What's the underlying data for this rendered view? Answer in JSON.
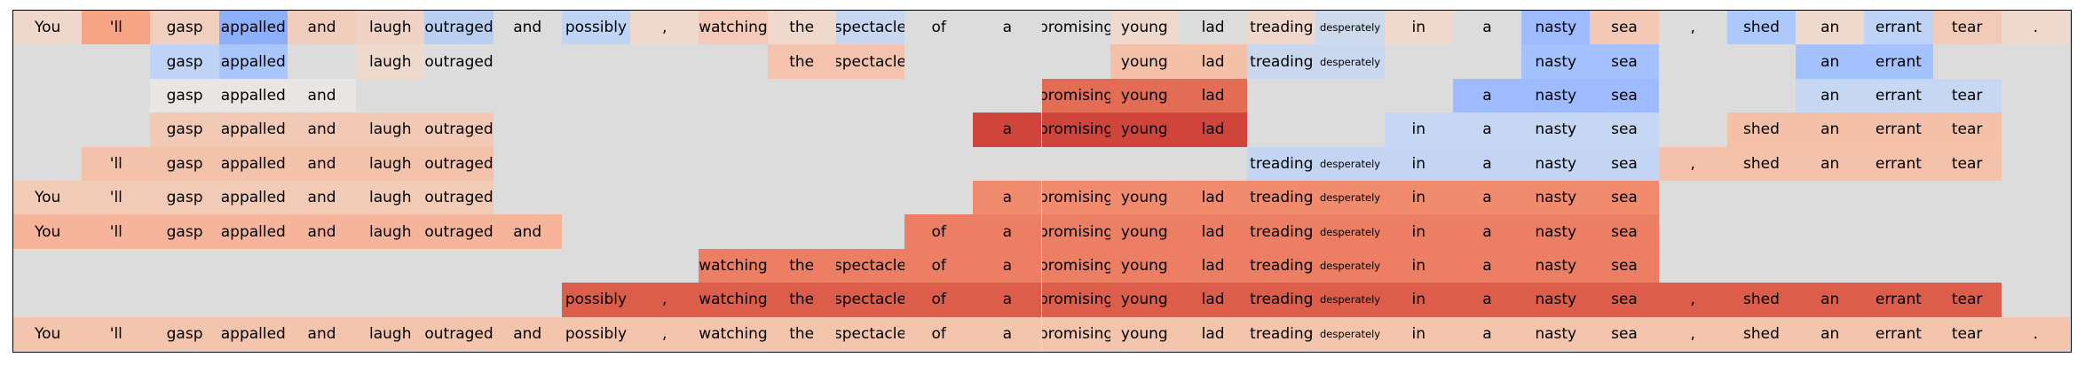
{
  "tokens": [
    "You",
    "'ll",
    "gasp",
    "appalled",
    "and",
    "laugh",
    "outraged",
    "and",
    "possibly",
    ",",
    "watching",
    "the",
    "spectacle",
    "of",
    "a",
    "promising",
    "young",
    "lad",
    "treading",
    "desperately",
    "in",
    "a",
    "nasty",
    "sea",
    ",",
    "shed",
    "an",
    "errant",
    "tear",
    "."
  ],
  "palette": {
    "background": "#dcdcdc",
    "border": "#000000"
  },
  "rows": [
    {
      "cells": [
        [
          0,
          "#efd7cb"
        ],
        [
          1,
          "#f5a486"
        ],
        [
          2,
          "#f1cfbf"
        ],
        [
          3,
          "#8daef8"
        ],
        [
          4,
          "#f1cdbc"
        ],
        [
          5,
          "#f0d3c6"
        ],
        [
          6,
          "#b9cff2"
        ],
        [
          7,
          null
        ],
        [
          8,
          "#c0d4f5"
        ],
        [
          9,
          "#efd8cc"
        ],
        [
          10,
          "#f2cab7"
        ],
        [
          11,
          "#efd8cc"
        ],
        [
          12,
          "#c7d7f0"
        ],
        [
          13,
          null
        ],
        [
          14,
          null
        ],
        [
          15,
          null
        ],
        [
          16,
          "#efd8cc"
        ],
        [
          17,
          null
        ],
        [
          18,
          "#efd7cb"
        ],
        [
          19,
          "#cdd9ec"
        ],
        [
          20,
          "#efd8cc"
        ],
        [
          21,
          null
        ],
        [
          22,
          "#9ebbff"
        ],
        [
          23,
          "#f3c9b6"
        ],
        [
          24,
          null
        ],
        [
          25,
          "#adc8fa"
        ],
        [
          26,
          "#efd8cc"
        ],
        [
          27,
          "#bfd3f6"
        ],
        [
          28,
          "#f2cbb8"
        ],
        [
          29,
          "#efd8cc"
        ]
      ]
    },
    {
      "cells": [
        [
          2,
          "#bfd3f6"
        ],
        [
          3,
          "#a9c6fc"
        ],
        [
          5,
          "#efd8cc"
        ],
        [
          6,
          "#dddddd"
        ],
        [
          11,
          "#f5c3ad"
        ],
        [
          12,
          "#f5c3ad"
        ],
        [
          16,
          "#f4c0a8"
        ],
        [
          17,
          "#f4c0a8"
        ],
        [
          18,
          "#cad8ef"
        ],
        [
          19,
          "#cad8ef"
        ],
        [
          22,
          "#a3c2ff"
        ],
        [
          23,
          "#a3c2ff"
        ],
        [
          26,
          "#a3c2ff"
        ],
        [
          27,
          "#a3c2ff"
        ]
      ]
    },
    {
      "cells": [
        [
          2,
          "#e8e5e2"
        ],
        [
          3,
          "#e8e5e2"
        ],
        [
          4,
          "#e8e5e2"
        ],
        [
          15,
          "#e36c55"
        ],
        [
          16,
          "#e36c55"
        ],
        [
          17,
          "#e36c55"
        ],
        [
          21,
          "#9ebbff"
        ],
        [
          22,
          "#9ebbff"
        ],
        [
          23,
          "#9ebbff"
        ],
        [
          26,
          "#c6d7f1"
        ],
        [
          27,
          "#c6d7f1"
        ],
        [
          28,
          "#c6d7f1"
        ]
      ]
    },
    {
      "cells": [
        [
          2,
          "#f2c9b5"
        ],
        [
          3,
          "#f2c9b5"
        ],
        [
          4,
          "#f2c9b5"
        ],
        [
          5,
          "#f2c9b5"
        ],
        [
          6,
          "#f2c9b5"
        ],
        [
          14,
          "#cf453c"
        ],
        [
          15,
          "#cf453c"
        ],
        [
          16,
          "#cf453c"
        ],
        [
          17,
          "#cf453c"
        ],
        [
          20,
          "#c5d6f2"
        ],
        [
          21,
          "#c5d6f2"
        ],
        [
          22,
          "#c5d6f2"
        ],
        [
          23,
          "#c5d6f2"
        ],
        [
          25,
          "#f4c0a8"
        ],
        [
          26,
          "#f4c0a8"
        ],
        [
          27,
          "#f4c0a8"
        ],
        [
          28,
          "#f4c0a8"
        ]
      ]
    },
    {
      "cells": [
        [
          1,
          "#f4c2aa"
        ],
        [
          2,
          "#f4c2aa"
        ],
        [
          3,
          "#f4c2aa"
        ],
        [
          4,
          "#f4c2aa"
        ],
        [
          5,
          "#f4c2aa"
        ],
        [
          6,
          "#f4c2aa"
        ],
        [
          18,
          "#c4d5f3"
        ],
        [
          19,
          "#c4d5f3"
        ],
        [
          20,
          "#c4d5f3"
        ],
        [
          21,
          "#c4d5f3"
        ],
        [
          22,
          "#c4d5f3"
        ],
        [
          23,
          "#c4d5f3"
        ],
        [
          24,
          "#f4c2aa"
        ],
        [
          25,
          "#f4c2aa"
        ],
        [
          26,
          "#f4c2aa"
        ],
        [
          27,
          "#f4c2aa"
        ],
        [
          28,
          "#f4c2aa"
        ]
      ]
    },
    {
      "cells": [
        [
          0,
          "#f2cbb7"
        ],
        [
          1,
          "#f2cbb7"
        ],
        [
          2,
          "#f2cbb7"
        ],
        [
          3,
          "#f2cbb7"
        ],
        [
          4,
          "#f2cbb7"
        ],
        [
          5,
          "#f2cbb7"
        ],
        [
          6,
          "#f2cbb7"
        ],
        [
          14,
          "#f08b6e"
        ],
        [
          15,
          "#f08b6e"
        ],
        [
          16,
          "#f08b6e"
        ],
        [
          17,
          "#f08b6e"
        ],
        [
          18,
          "#f08b6e"
        ],
        [
          19,
          "#f08b6e"
        ],
        [
          20,
          "#f08b6e"
        ],
        [
          21,
          "#f08b6e"
        ],
        [
          22,
          "#f08b6e"
        ],
        [
          23,
          "#f08b6e"
        ]
      ]
    },
    {
      "cells": [
        [
          0,
          "#f6b59a"
        ],
        [
          1,
          "#f6b59a"
        ],
        [
          2,
          "#f6b59a"
        ],
        [
          3,
          "#f6b59a"
        ],
        [
          4,
          "#f6b59a"
        ],
        [
          5,
          "#f6b59a"
        ],
        [
          6,
          "#f6b59a"
        ],
        [
          7,
          "#f6b59a"
        ],
        [
          13,
          "#ec7f63"
        ],
        [
          14,
          "#ec7f63"
        ],
        [
          15,
          "#ec7f63"
        ],
        [
          16,
          "#ec7f63"
        ],
        [
          17,
          "#ec7f63"
        ],
        [
          18,
          "#ec7f63"
        ],
        [
          19,
          "#ec7f63"
        ],
        [
          20,
          "#ec7f63"
        ],
        [
          21,
          "#ec7f63"
        ],
        [
          22,
          "#ec7f63"
        ],
        [
          23,
          "#ec7f63"
        ]
      ]
    },
    {
      "cells": [
        [
          10,
          "#ec7f63"
        ],
        [
          11,
          "#ec7f63"
        ],
        [
          12,
          "#ec7f63"
        ],
        [
          13,
          "#ec7f63"
        ],
        [
          14,
          "#ec7f63"
        ],
        [
          15,
          "#ec7f63"
        ],
        [
          16,
          "#ec7f63"
        ],
        [
          17,
          "#ec7f63"
        ],
        [
          18,
          "#ec7f63"
        ],
        [
          19,
          "#ec7f63"
        ],
        [
          20,
          "#ec7f63"
        ],
        [
          21,
          "#ec7f63"
        ],
        [
          22,
          "#ec7f63"
        ],
        [
          23,
          "#ec7f63"
        ]
      ]
    },
    {
      "cells": [
        [
          8,
          "#dc5d4a"
        ],
        [
          9,
          "#dc5d4a"
        ],
        [
          10,
          "#dc5d4a"
        ],
        [
          11,
          "#dc5d4a"
        ],
        [
          12,
          "#dc5d4a"
        ],
        [
          13,
          "#dc5d4a"
        ],
        [
          14,
          "#dc5d4a"
        ],
        [
          15,
          "#dc5d4a"
        ],
        [
          16,
          "#dc5d4a"
        ],
        [
          17,
          "#dc5d4a"
        ],
        [
          18,
          "#dc5d4a"
        ],
        [
          19,
          "#dc5d4a"
        ],
        [
          20,
          "#dc5d4a"
        ],
        [
          21,
          "#dc5d4a"
        ],
        [
          22,
          "#dc5d4a"
        ],
        [
          23,
          "#dc5d4a"
        ],
        [
          24,
          "#dc5d4a"
        ],
        [
          25,
          "#dc5d4a"
        ],
        [
          26,
          "#dc5d4a"
        ],
        [
          27,
          "#dc5d4a"
        ],
        [
          28,
          "#dc5d4a"
        ]
      ]
    },
    {
      "cells": [
        [
          0,
          "#f4c5ad"
        ],
        [
          1,
          "#f4c5ad"
        ],
        [
          2,
          "#f4c5ad"
        ],
        [
          3,
          "#f4c5ad"
        ],
        [
          4,
          "#f4c5ad"
        ],
        [
          5,
          "#f4c5ad"
        ],
        [
          6,
          "#f4c5ad"
        ],
        [
          7,
          "#f4c5ad"
        ],
        [
          8,
          "#f4c5ad"
        ],
        [
          9,
          "#f4c5ad"
        ],
        [
          10,
          "#f4c5ad"
        ],
        [
          11,
          "#f4c5ad"
        ],
        [
          12,
          "#f4c5ad"
        ],
        [
          13,
          "#f4c5ad"
        ],
        [
          14,
          "#f4c5ad"
        ],
        [
          15,
          "#f4c5ad"
        ],
        [
          16,
          "#f4c5ad"
        ],
        [
          17,
          "#f4c5ad"
        ],
        [
          18,
          "#f4c5ad"
        ],
        [
          19,
          "#f4c5ad"
        ],
        [
          20,
          "#f4c5ad"
        ],
        [
          21,
          "#f4c5ad"
        ],
        [
          22,
          "#f4c5ad"
        ],
        [
          23,
          "#f4c5ad"
        ],
        [
          24,
          "#f4c5ad"
        ],
        [
          25,
          "#f4c5ad"
        ],
        [
          26,
          "#f4c5ad"
        ],
        [
          27,
          "#f4c5ad"
        ],
        [
          28,
          "#f4c5ad"
        ],
        [
          29,
          "#f4c5ad"
        ]
      ]
    }
  ]
}
